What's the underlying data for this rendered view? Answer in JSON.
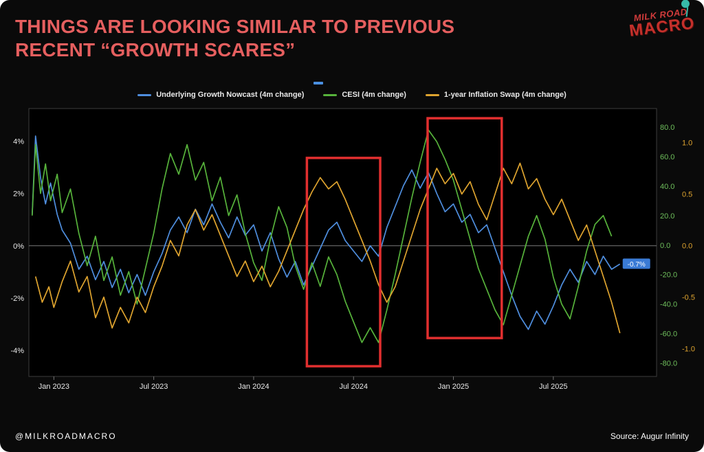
{
  "header": {
    "title_line1": "THINGS ARE LOOKING SIMILAR TO PREVIOUS",
    "title_line2": "RECENT “GROWTH SCARES”",
    "title_color": "#e65f5f",
    "logo": {
      "line1": "MILK ROAD",
      "line2": "MACRO",
      "text_color": "#cf3a35",
      "balloon_color": "#37b9a9"
    }
  },
  "legend": {
    "items": [
      {
        "label": "Underlying Growth Nowcast (4m change)",
        "color": "#4f8ede"
      },
      {
        "label": "CESI (4m change)",
        "color": "#57b33b"
      },
      {
        "label": "1-year Inflation Swap (4m change)",
        "color": "#dfa42f"
      }
    ]
  },
  "chart_data": {
    "type": "line",
    "legend_position": "top",
    "x_unit": "months since Jan 2023",
    "x_domain": [
      -1.5,
      36.2
    ],
    "x_ticks": [
      {
        "m": 0,
        "label": "Jan 2023"
      },
      {
        "m": 6,
        "label": "Jul 2023"
      },
      {
        "m": 12,
        "label": "Jan 2024"
      },
      {
        "m": 18,
        "label": "Jul 2024"
      },
      {
        "m": 24,
        "label": "Jan 2025"
      },
      {
        "m": 30,
        "label": "Jul 2025"
      }
    ],
    "left_axis": {
      "domain": [
        -5.0,
        5.25
      ],
      "color": "#e8e8e8",
      "ticks": [
        {
          "v": 4,
          "label": "4%"
        },
        {
          "v": 2,
          "label": "2%"
        },
        {
          "v": 0,
          "label": "0%"
        },
        {
          "v": -2,
          "label": "-2%"
        },
        {
          "v": -4,
          "label": "-4%"
        }
      ]
    },
    "right_axis_green": {
      "domain": [
        -89,
        92.5
      ],
      "color": "#6fbf5c",
      "ticks": [
        {
          "v": 80,
          "label": "80.0"
        },
        {
          "v": 60,
          "label": "60.0"
        },
        {
          "v": 40,
          "label": "40.0"
        },
        {
          "v": 20,
          "label": "20.0"
        },
        {
          "v": 0,
          "label": "0.0"
        },
        {
          "v": -20,
          "label": "-20.0"
        },
        {
          "v": -40,
          "label": "-40.0"
        },
        {
          "v": -60,
          "label": "-60.0"
        },
        {
          "v": -80,
          "label": "-80.0"
        }
      ]
    },
    "right_axis_orange": {
      "domain": [
        -1.27,
        1.33
      ],
      "color": "#dfa42f",
      "ticks": [
        {
          "v": 1,
          "label": "1.0"
        },
        {
          "v": 0.5,
          "label": "0.5"
        },
        {
          "v": 0,
          "label": "0.0"
        },
        {
          "v": -0.5,
          "label": "-0.5"
        },
        {
          "v": -1,
          "label": "-1.0"
        }
      ]
    },
    "series": [
      {
        "name": "Underlying Growth Nowcast (4m change)",
        "axis": "left",
        "color": "#4f8ede",
        "points": [
          [
            -1.3,
            1.2
          ],
          [
            -1.1,
            4.2
          ],
          [
            -0.8,
            2.6
          ],
          [
            -0.5,
            1.6
          ],
          [
            -0.2,
            2.4
          ],
          [
            0.2,
            1.2
          ],
          [
            0.5,
            0.6
          ],
          [
            1,
            0.1
          ],
          [
            1.5,
            -0.9
          ],
          [
            2,
            -0.4
          ],
          [
            2.5,
            -1.3
          ],
          [
            3,
            -0.6
          ],
          [
            3.5,
            -1.6
          ],
          [
            4,
            -0.9
          ],
          [
            4.5,
            -1.8
          ],
          [
            5,
            -1.1
          ],
          [
            5.5,
            -1.9
          ],
          [
            6,
            -1.0
          ],
          [
            6.5,
            -0.3
          ],
          [
            7,
            0.6
          ],
          [
            7.5,
            1.1
          ],
          [
            8,
            0.5
          ],
          [
            8.5,
            1.4
          ],
          [
            9,
            0.8
          ],
          [
            9.5,
            1.6
          ],
          [
            10,
            0.9
          ],
          [
            10.5,
            0.3
          ],
          [
            11,
            1.1
          ],
          [
            11.5,
            0.4
          ],
          [
            12,
            0.8
          ],
          [
            12.5,
            -0.2
          ],
          [
            13,
            0.5
          ],
          [
            13.5,
            -0.5
          ],
          [
            14,
            -1.2
          ],
          [
            14.5,
            -0.6
          ],
          [
            15,
            -1.5
          ],
          [
            15.5,
            -0.8
          ],
          [
            16,
            -0.1
          ],
          [
            16.5,
            0.6
          ],
          [
            17,
            0.9
          ],
          [
            17.5,
            0.2
          ],
          [
            18,
            -0.2
          ],
          [
            18.5,
            -0.6
          ],
          [
            19,
            0.0
          ],
          [
            19.5,
            -0.4
          ],
          [
            20,
            0.7
          ],
          [
            20.5,
            1.5
          ],
          [
            21,
            2.3
          ],
          [
            21.5,
            2.9
          ],
          [
            22,
            2.2
          ],
          [
            22.5,
            2.8
          ],
          [
            23,
            2.0
          ],
          [
            23.5,
            1.3
          ],
          [
            24,
            1.6
          ],
          [
            24.5,
            0.9
          ],
          [
            25,
            1.2
          ],
          [
            25.5,
            0.5
          ],
          [
            26,
            0.8
          ],
          [
            26.5,
            -0.1
          ],
          [
            27,
            -1.0
          ],
          [
            27.5,
            -1.9
          ],
          [
            28,
            -2.7
          ],
          [
            28.5,
            -3.2
          ],
          [
            29,
            -2.5
          ],
          [
            29.5,
            -3.0
          ],
          [
            30,
            -2.3
          ],
          [
            30.5,
            -1.5
          ],
          [
            31,
            -0.9
          ],
          [
            31.5,
            -1.4
          ],
          [
            32,
            -0.6
          ],
          [
            32.5,
            -1.1
          ],
          [
            33,
            -0.4
          ],
          [
            33.5,
            -0.9
          ],
          [
            34,
            -0.7
          ]
        ]
      },
      {
        "name": "CESI (4m change)",
        "axis": "green",
        "color": "#57b33b",
        "points": [
          [
            -1.3,
            20
          ],
          [
            -1.1,
            68
          ],
          [
            -0.8,
            35
          ],
          [
            -0.5,
            55
          ],
          [
            -0.2,
            30
          ],
          [
            0.2,
            48
          ],
          [
            0.5,
            22
          ],
          [
            1,
            38
          ],
          [
            1.5,
            8
          ],
          [
            2,
            -14
          ],
          [
            2.5,
            6
          ],
          [
            3,
            -24
          ],
          [
            3.5,
            -8
          ],
          [
            4,
            -34
          ],
          [
            4.5,
            -18
          ],
          [
            5,
            -40
          ],
          [
            5.5,
            -16
          ],
          [
            6,
            8
          ],
          [
            6.5,
            38
          ],
          [
            7,
            62
          ],
          [
            7.5,
            48
          ],
          [
            8,
            68
          ],
          [
            8.5,
            44
          ],
          [
            9,
            56
          ],
          [
            9.5,
            30
          ],
          [
            10,
            46
          ],
          [
            10.5,
            20
          ],
          [
            11,
            34
          ],
          [
            11.5,
            8
          ],
          [
            12,
            -12
          ],
          [
            12.5,
            -24
          ],
          [
            13,
            4
          ],
          [
            13.5,
            26
          ],
          [
            14,
            12
          ],
          [
            14.5,
            -14
          ],
          [
            15,
            -30
          ],
          [
            15.5,
            -12
          ],
          [
            16,
            -28
          ],
          [
            16.5,
            -8
          ],
          [
            17,
            -20
          ],
          [
            17.5,
            -38
          ],
          [
            18,
            -52
          ],
          [
            18.5,
            -66
          ],
          [
            19,
            -56
          ],
          [
            19.5,
            -66
          ],
          [
            20,
            -44
          ],
          [
            20.5,
            -20
          ],
          [
            21,
            6
          ],
          [
            21.5,
            32
          ],
          [
            22,
            56
          ],
          [
            22.5,
            78
          ],
          [
            23,
            70
          ],
          [
            23.5,
            58
          ],
          [
            24,
            44
          ],
          [
            24.5,
            24
          ],
          [
            25,
            4
          ],
          [
            25.5,
            -16
          ],
          [
            26,
            -30
          ],
          [
            26.5,
            -44
          ],
          [
            27,
            -54
          ],
          [
            27.5,
            -34
          ],
          [
            28,
            -14
          ],
          [
            28.5,
            6
          ],
          [
            29,
            20
          ],
          [
            29.5,
            4
          ],
          [
            30,
            -22
          ],
          [
            30.5,
            -40
          ],
          [
            31,
            -50
          ],
          [
            31.5,
            -28
          ],
          [
            32,
            -4
          ],
          [
            32.5,
            14
          ],
          [
            33,
            20
          ],
          [
            33.5,
            6
          ]
        ]
      },
      {
        "name": "1-year Inflation Swap (4m change)",
        "axis": "orange",
        "color": "#dfa42f",
        "points": [
          [
            -1.1,
            -0.3
          ],
          [
            -0.7,
            -0.55
          ],
          [
            -0.3,
            -0.4
          ],
          [
            0,
            -0.6
          ],
          [
            0.5,
            -0.35
          ],
          [
            1,
            -0.15
          ],
          [
            1.5,
            -0.45
          ],
          [
            2,
            -0.3
          ],
          [
            2.5,
            -0.7
          ],
          [
            3,
            -0.5
          ],
          [
            3.5,
            -0.8
          ],
          [
            4,
            -0.6
          ],
          [
            4.5,
            -0.75
          ],
          [
            5,
            -0.5
          ],
          [
            5.5,
            -0.65
          ],
          [
            6,
            -0.4
          ],
          [
            6.5,
            -0.2
          ],
          [
            7,
            0.05
          ],
          [
            7.5,
            -0.1
          ],
          [
            8,
            0.2
          ],
          [
            8.5,
            0.35
          ],
          [
            9,
            0.15
          ],
          [
            9.5,
            0.3
          ],
          [
            10,
            0.1
          ],
          [
            10.5,
            -0.1
          ],
          [
            11,
            -0.3
          ],
          [
            11.5,
            -0.15
          ],
          [
            12,
            -0.35
          ],
          [
            12.5,
            -0.2
          ],
          [
            13,
            -0.4
          ],
          [
            13.5,
            -0.25
          ],
          [
            14,
            -0.05
          ],
          [
            14.5,
            0.15
          ],
          [
            15,
            0.35
          ],
          [
            15.5,
            0.52
          ],
          [
            16,
            0.66
          ],
          [
            16.5,
            0.55
          ],
          [
            17,
            0.62
          ],
          [
            17.5,
            0.45
          ],
          [
            18,
            0.25
          ],
          [
            18.5,
            0.05
          ],
          [
            19,
            -0.15
          ],
          [
            19.5,
            -0.38
          ],
          [
            20,
            -0.55
          ],
          [
            20.5,
            -0.4
          ],
          [
            21,
            -0.15
          ],
          [
            21.5,
            0.1
          ],
          [
            22,
            0.35
          ],
          [
            22.5,
            0.55
          ],
          [
            23,
            0.75
          ],
          [
            23.5,
            0.6
          ],
          [
            24,
            0.7
          ],
          [
            24.5,
            0.5
          ],
          [
            25,
            0.62
          ],
          [
            25.5,
            0.4
          ],
          [
            26,
            0.25
          ],
          [
            26.5,
            0.5
          ],
          [
            27,
            0.75
          ],
          [
            27.5,
            0.6
          ],
          [
            28,
            0.8
          ],
          [
            28.5,
            0.55
          ],
          [
            29,
            0.65
          ],
          [
            29.5,
            0.45
          ],
          [
            30,
            0.3
          ],
          [
            30.5,
            0.45
          ],
          [
            31,
            0.25
          ],
          [
            31.5,
            0.05
          ],
          [
            32,
            0.2
          ],
          [
            32.5,
            -0.05
          ],
          [
            33,
            -0.3
          ],
          [
            33.5,
            -0.55
          ],
          [
            34,
            -0.85
          ]
        ]
      }
    ],
    "highlight_boxes": [
      {
        "x0": 15.2,
        "x1": 19.6,
        "y0": -4.61,
        "y1": 3.36,
        "color": "#e12f2f"
      },
      {
        "x0": 22.45,
        "x1": 26.9,
        "y0": -3.53,
        "y1": 4.88,
        "color": "#e12f2f"
      }
    ],
    "end_label": {
      "x": 34.0,
      "y": -0.7,
      "text": "-0.7%",
      "bg": "#3a7bd5"
    },
    "zero_line_color": "#7a7a7a"
  },
  "footer": {
    "handle": "@MILKROADMACRO",
    "source": "Source: Augur Infinity"
  }
}
